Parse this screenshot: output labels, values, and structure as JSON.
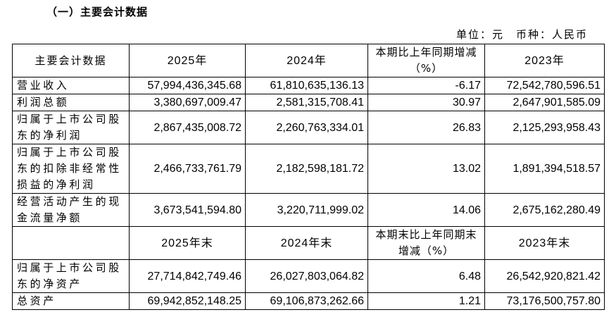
{
  "title": "（一）主要会计数据",
  "unit": "单位：元　币种：人民币",
  "table": {
    "blocks": [
      {
        "header": [
          "主要会计数据",
          "2025年",
          "2024年",
          "本期比上年同期增减（%）",
          "2023年"
        ],
        "rows": [
          [
            "营业收入",
            "57,994,436,345.68",
            "61,810,635,136.13",
            "-6.17",
            "72,542,780,596.51"
          ],
          [
            "利润总额",
            "3,380,697,009.47",
            "2,581,315,708.41",
            "30.97",
            "2,647,901,585.09"
          ],
          [
            "归属于上市公司股东的净利润",
            "2,867,435,008.72",
            "2,260,763,334.01",
            "26.83",
            "2,125,293,958.43"
          ],
          [
            "归属于上市公司股东的扣除非经常性损益的净利润",
            "2,466,733,761.79",
            "2,182,598,181.72",
            "13.02",
            "1,891,394,518.57"
          ],
          [
            "经营活动产生的现金流量净额",
            "3,673,541,594.80",
            "3,220,711,999.02",
            "14.06",
            "2,675,162,280.49"
          ]
        ]
      },
      {
        "header": [
          "",
          "2025年末",
          "2024年末",
          "本期末比上年同期末增减（%）",
          "2023年末"
        ],
        "rows": [
          [
            "归属于上市公司股东的净资产",
            "27,714,842,749.46",
            "26,027,803,064.82",
            "6.48",
            "26,542,920,821.42"
          ],
          [
            "总资产",
            "69,942,852,148.25",
            "69,106,873,262.66",
            "1.21",
            "73,176,500,757.80"
          ]
        ]
      }
    ]
  }
}
